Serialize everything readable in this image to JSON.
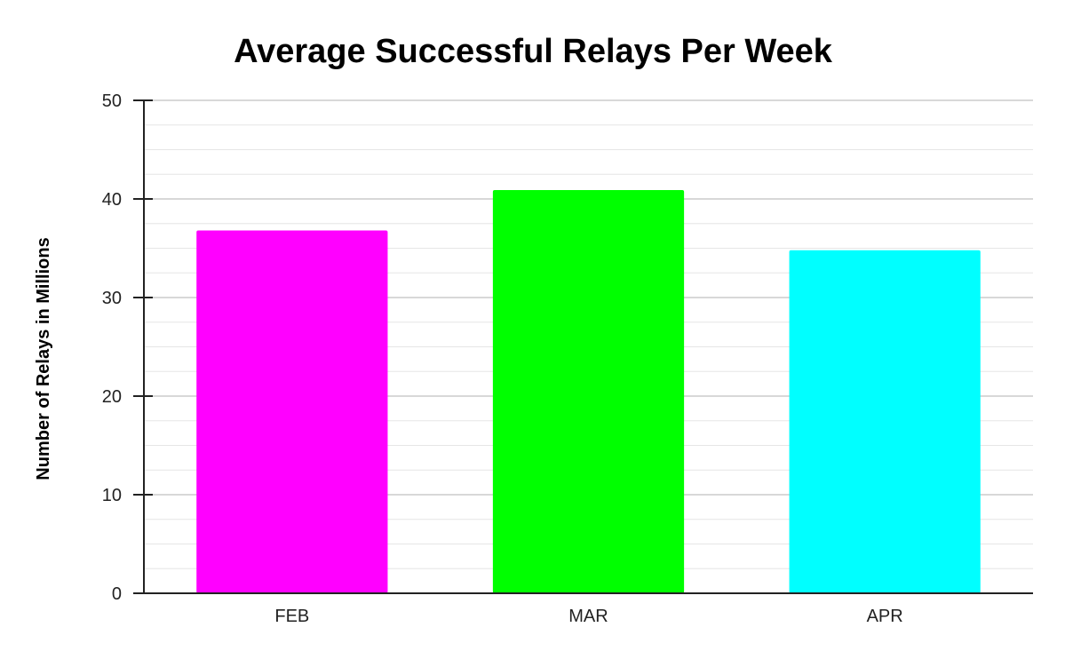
{
  "chart_data": {
    "type": "bar",
    "title": "Average Successful Relays Per Week",
    "xlabel": "",
    "ylabel": "Number of Relays in Millions",
    "categories": [
      "FEB",
      "MAR",
      "APR"
    ],
    "values": [
      36.8,
      40.9,
      34.8
    ],
    "colors": [
      "#ff00ff",
      "#00ff00",
      "#00ffff"
    ],
    "ylim": [
      0,
      50
    ],
    "yticks": [
      0,
      10,
      20,
      30,
      40,
      50
    ],
    "minor_gridlines_per_major": 3,
    "grid": true,
    "legend": "none"
  }
}
